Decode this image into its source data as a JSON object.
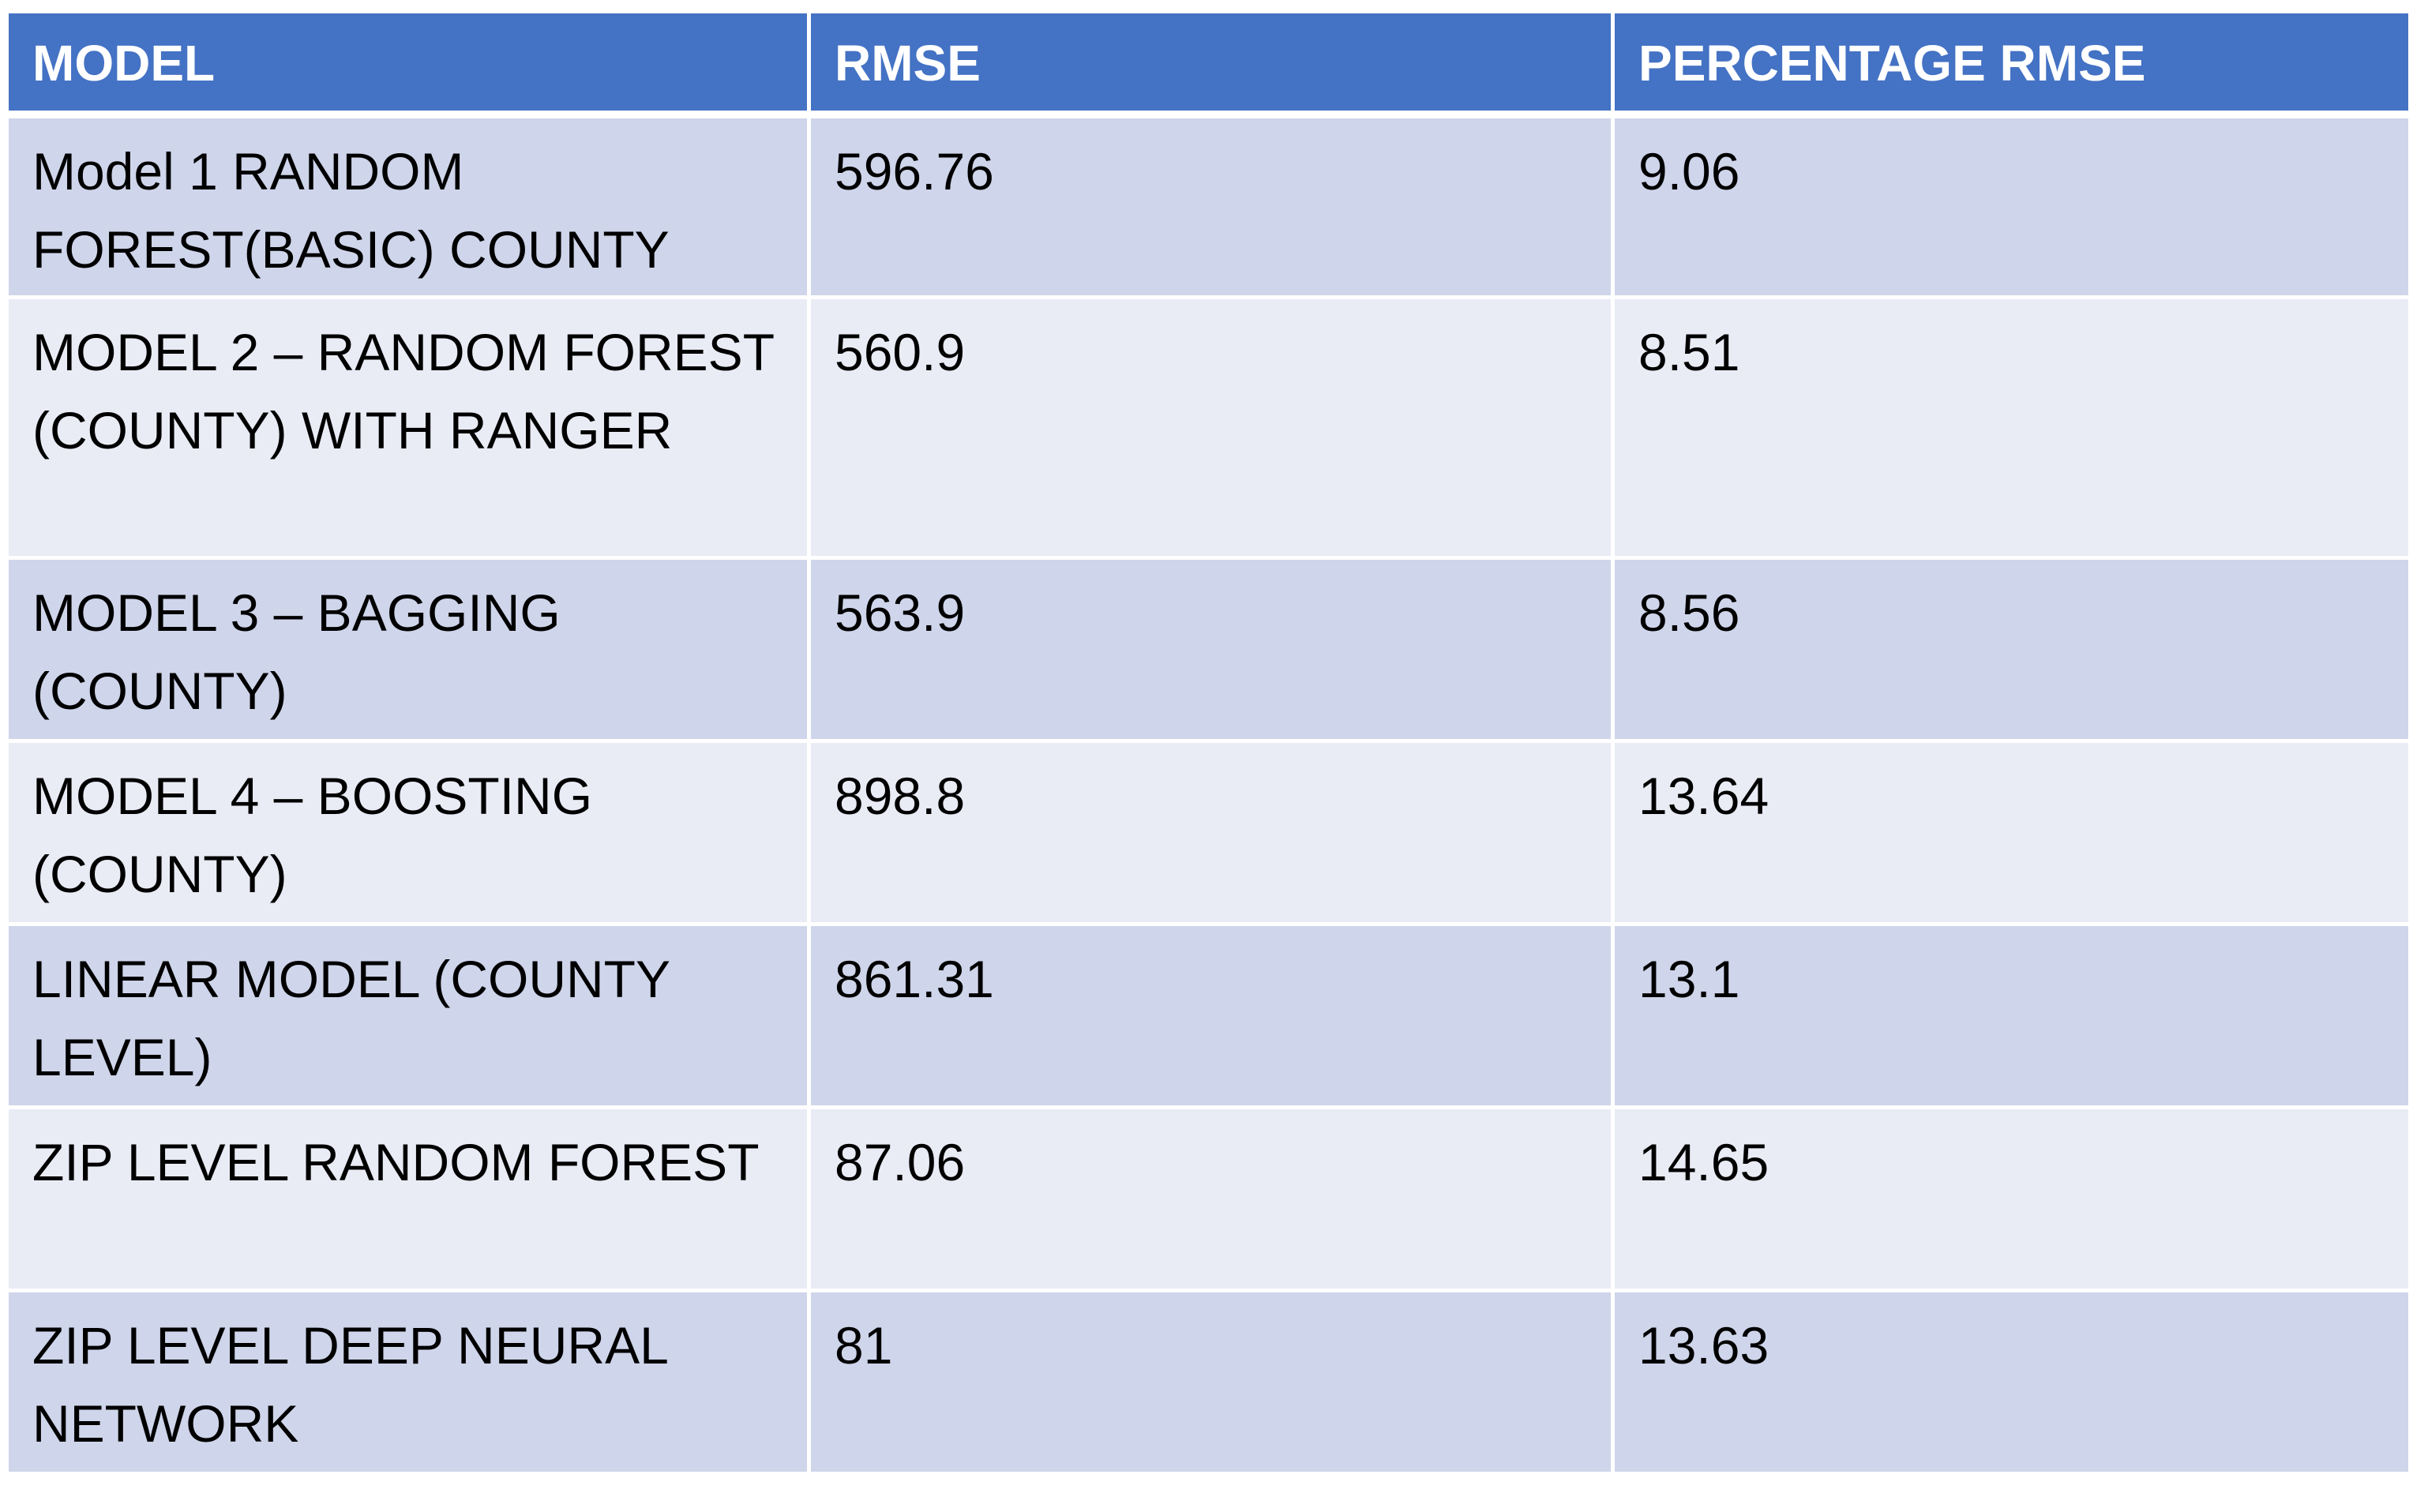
{
  "table": {
    "headers": [
      "MODEL",
      "RMSE",
      "PERCENTAGE RMSE"
    ],
    "rows": [
      {
        "model": "Model 1 RANDOM FOREST(BASIC) COUNTY",
        "rmse": "596.76",
        "percentage_rmse": "9.06"
      },
      {
        "model": "MODEL 2 – RANDOM FOREST (COUNTY) WITH RANGER",
        "rmse": "560.9",
        "percentage_rmse": "8.51"
      },
      {
        "model": "MODEL 3 – BAGGING (COUNTY)",
        "rmse": "563.9",
        "percentage_rmse": "8.56"
      },
      {
        "model": "MODEL 4 – BOOSTING (COUNTY)",
        "rmse": "898.8",
        "percentage_rmse": "13.64"
      },
      {
        "model": "LINEAR MODEL (COUNTY LEVEL)",
        "rmse": "861.31",
        "percentage_rmse": "13.1"
      },
      {
        "model": "ZIP LEVEL RANDOM FOREST",
        "rmse": "87.06",
        "percentage_rmse": "14.65"
      },
      {
        "model": "ZIP LEVEL DEEP NEURAL NETWORK",
        "rmse": "81",
        "percentage_rmse": "13.63"
      }
    ]
  },
  "colors": {
    "header_bg": "#4472c4",
    "header_text": "#ffffff",
    "row_odd_bg": "#cfd5ea",
    "row_even_bg": "#e9ebf5"
  }
}
